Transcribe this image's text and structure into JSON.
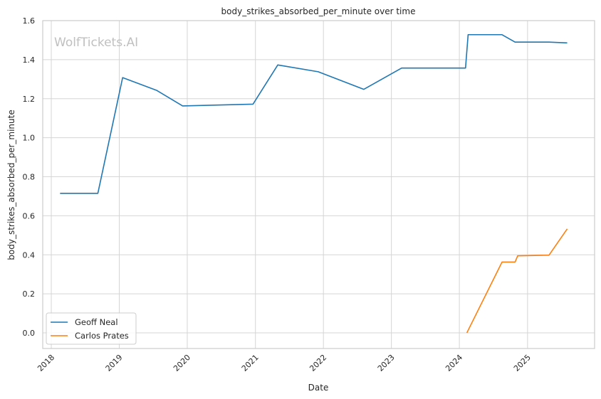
{
  "chart_data": {
    "type": "line",
    "title": "body_strikes_absorbed_per_minute over time",
    "xlabel": "Date",
    "ylabel": "body_strikes_absorbed_per_minute",
    "watermark": "WolfTickets.AI",
    "x_axis_type": "date",
    "xlim": [
      "2017-11-16",
      "2025-12-27"
    ],
    "ylim": [
      -0.08,
      1.6
    ],
    "x_ticks": [
      "2018",
      "2019",
      "2020",
      "2021",
      "2022",
      "2023",
      "2024",
      "2025"
    ],
    "y_ticks": [
      0.0,
      0.2,
      0.4,
      0.6,
      0.8,
      1.0,
      1.2,
      1.4,
      1.6
    ],
    "y_tick_labels": [
      "0.0",
      "0.2",
      "0.4",
      "0.6",
      "0.8",
      "1.0",
      "1.2",
      "1.4",
      "1.6"
    ],
    "grid": true,
    "legend_position": "lower-left",
    "series": [
      {
        "name": "Geoff Neal",
        "color": "#1f77b4",
        "points": [
          {
            "x": "2018-02-17",
            "y": 0.715
          },
          {
            "x": "2018-09-08",
            "y": 0.715
          },
          {
            "x": "2019-01-19",
            "y": 1.308
          },
          {
            "x": "2019-07-20",
            "y": 1.243
          },
          {
            "x": "2019-12-07",
            "y": 1.163
          },
          {
            "x": "2020-12-19",
            "y": 1.172
          },
          {
            "x": "2021-05-01",
            "y": 1.373
          },
          {
            "x": "2021-12-04",
            "y": 1.338
          },
          {
            "x": "2022-08-06",
            "y": 1.248
          },
          {
            "x": "2023-02-25",
            "y": 1.357
          },
          {
            "x": "2024-02-03",
            "y": 1.357
          },
          {
            "x": "2024-02-17",
            "y": 1.528
          },
          {
            "x": "2024-08-17",
            "y": 1.528
          },
          {
            "x": "2024-10-26",
            "y": 1.49
          },
          {
            "x": "2025-04-26",
            "y": 1.49
          },
          {
            "x": "2025-08-02",
            "y": 1.486
          }
        ]
      },
      {
        "name": "Carlos Prates",
        "color": "#ff7f0e",
        "points": [
          {
            "x": "2024-02-10",
            "y": 0.0
          },
          {
            "x": "2024-08-17",
            "y": 0.363
          },
          {
            "x": "2024-10-26",
            "y": 0.363
          },
          {
            "x": "2024-11-09",
            "y": 0.395
          },
          {
            "x": "2025-04-26",
            "y": 0.398
          },
          {
            "x": "2025-08-02",
            "y": 0.533
          }
        ]
      }
    ]
  }
}
